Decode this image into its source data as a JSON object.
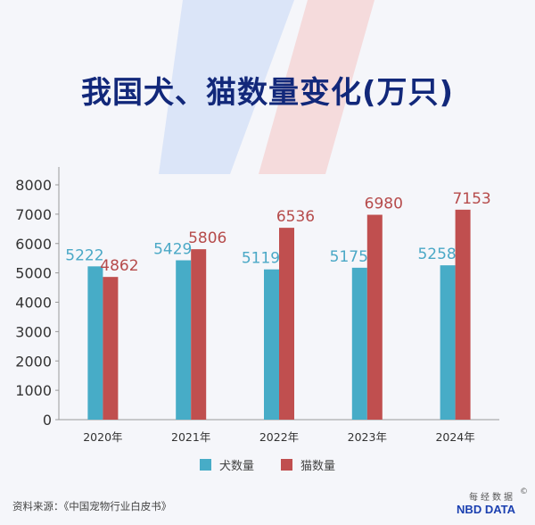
{
  "title": "我国犬、猫数量变化(万只)",
  "source": "资料来源：《中国宠物行业白皮书》",
  "brand": {
    "top": "每经数据",
    "bottom": "NBD DATA",
    "mark": "©"
  },
  "colors": {
    "dog": "#47acc7",
    "cat": "#c04f4f",
    "dog_label": "#4aa8c6",
    "cat_label": "#b64b4b",
    "title": "#12287a"
  },
  "chart_data": {
    "type": "bar",
    "categories": [
      "2020年",
      "2021年",
      "2022年",
      "2023年",
      "2024年"
    ],
    "series": [
      {
        "name": "犬数量",
        "values": [
          5222,
          5429,
          5119,
          5175,
          5258
        ]
      },
      {
        "name": "猫数量",
        "values": [
          4862,
          5806,
          6536,
          6980,
          7153
        ]
      }
    ],
    "yticks": [
      "0",
      "1000",
      "2000",
      "3000",
      "4000",
      "5000",
      "6000",
      "7000",
      "8000"
    ],
    "ylim": [
      0,
      8000
    ],
    "grid": false,
    "legend_position": "bottom"
  }
}
